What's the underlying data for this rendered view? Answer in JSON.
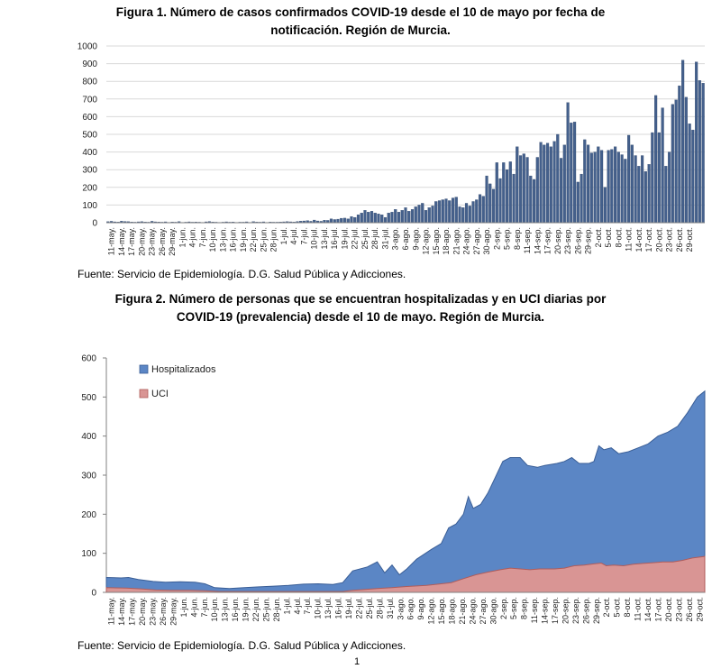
{
  "figure1": {
    "title_line1": "Figura 1. Número de casos confirmados COVID-19 desde el 10 de mayo por fecha de",
    "title_line2": "notificación. Región de Murcia.",
    "source": "Fuente: Servicio de Epidemiología. D.G. Salud Pública y Adicciones."
  },
  "figure2": {
    "title_line1": "Figura 2. Número de personas que se encuentran hospitalizadas y en UCI diarias por",
    "title_line2": "COVID-19 (prevalencia) desde el 10 de mayo. Región de Murcia.",
    "source": "Fuente: Servicio de Epidemiología. D.G. Salud Pública y Adicciones."
  },
  "page_number": "1",
  "colors": {
    "bar_fill": "#44608C",
    "bar_stroke": "#2F4568",
    "hosp_fill": "#5B86C5",
    "hosp_stroke": "#3A5E96",
    "uci_fill": "#D99594",
    "uci_stroke": "#B05C5A",
    "grid": "#D9D9D9",
    "axis": "#808080"
  },
  "chart_data": [
    {
      "type": "bar",
      "title": "Figura 1. Número de casos confirmados COVID-19 desde el 10 de mayo por fecha de notificación. Región de Murcia.",
      "xlabel": "",
      "ylabel": "",
      "ylim": [
        0,
        1000
      ],
      "yticks": [
        0,
        100,
        200,
        300,
        400,
        500,
        600,
        700,
        800,
        900,
        1000
      ],
      "grid": true,
      "start_date": "10-may",
      "categories_tick_labels": [
        "11-may.",
        "14-may.",
        "17-may.",
        "20-may.",
        "23-may.",
        "26-may.",
        "29-may.",
        "1-jun.",
        "4-jun.",
        "7-jun.",
        "10-jun.",
        "13-jun.",
        "16-jun.",
        "19-jun.",
        "22-jun.",
        "25-jun.",
        "28-jun.",
        "1-jul.",
        "4-jul.",
        "7-jul.",
        "10-jul.",
        "13-jul.",
        "16-jul.",
        "19-jul.",
        "22-jul.",
        "25-jul.",
        "28-jul.",
        "31-jul.",
        "3-ago.",
        "6-ago.",
        "9-ago.",
        "12-ago.",
        "15-ago.",
        "18-ago.",
        "21-ago.",
        "24-ago.",
        "27-ago.",
        "30-ago.",
        "2-sep.",
        "5-sep.",
        "8-sep.",
        "11-sep.",
        "14-sep.",
        "17-sep.",
        "20-sep.",
        "23-sep.",
        "26-sep.",
        "29-sep.",
        "2-oct.",
        "5-oct.",
        "8-oct.",
        "11-oct.",
        "14-oct.",
        "17-oct.",
        "20-oct.",
        "23-oct.",
        "26-oct.",
        "29-oct."
      ],
      "values": [
        6,
        8,
        5,
        4,
        9,
        7,
        6,
        4,
        3,
        5,
        6,
        4,
        3,
        8,
        5,
        4,
        3,
        5,
        2,
        4,
        3,
        6,
        2,
        3,
        5,
        3,
        4,
        3,
        2,
        5,
        7,
        4,
        3,
        2,
        3,
        5,
        3,
        4,
        2,
        3,
        3,
        5,
        2,
        6,
        4,
        3,
        5,
        2,
        4,
        3,
        3,
        4,
        5,
        6,
        5,
        4,
        7,
        9,
        10,
        12,
        8,
        15,
        10,
        8,
        14,
        13,
        22,
        18,
        20,
        25,
        26,
        22,
        35,
        30,
        45,
        55,
        70,
        60,
        65,
        55,
        50,
        45,
        30,
        55,
        60,
        75,
        60,
        70,
        85,
        65,
        75,
        90,
        100,
        110,
        70,
        85,
        95,
        120,
        125,
        130,
        135,
        125,
        140,
        145,
        90,
        85,
        110,
        95,
        120,
        130,
        160,
        150,
        265,
        220,
        190,
        340,
        250,
        340,
        300,
        345,
        275,
        430,
        380,
        390,
        370,
        265,
        245,
        370,
        455,
        440,
        450,
        430,
        460,
        500,
        365,
        440,
        680,
        565,
        570,
        230,
        275,
        470,
        440,
        395,
        400,
        430,
        410,
        200,
        410,
        415,
        430,
        400,
        385,
        360,
        495,
        440,
        380,
        320,
        380,
        290,
        330,
        510,
        720,
        510,
        650,
        320,
        400,
        670,
        695,
        775,
        920,
        710,
        560,
        525,
        910,
        805,
        790
      ]
    },
    {
      "type": "area",
      "title": "Figura 2. Número de personas que se encuentran hospitalizadas y en UCI diarias por COVID-19 (prevalencia) desde el 10 de mayo. Región de Murcia.",
      "xlabel": "",
      "ylabel": "",
      "ylim": [
        0,
        600
      ],
      "yticks": [
        0,
        100,
        200,
        300,
        400,
        500,
        600
      ],
      "grid": false,
      "legend_position": "top-left",
      "categories_tick_labels": [
        "11-may.",
        "14-may.",
        "17-may.",
        "20-may.",
        "23-may.",
        "26-may.",
        "29-may.",
        "1-jun.",
        "4-jun.",
        "7-jun.",
        "10-jun.",
        "13-jun.",
        "16-jun.",
        "19-jun.",
        "22-jun.",
        "25-jun.",
        "28-jun.",
        "1-jul.",
        "4-jul.",
        "7-jul.",
        "10-jul.",
        "13-jul.",
        "16-jul.",
        "19-jul.",
        "22-jul.",
        "25-jul.",
        "28-jul.",
        "31-jul.",
        "3-ago.",
        "6-ago.",
        "9-ago.",
        "12-ago.",
        "15-ago.",
        "18-ago.",
        "21-ago.",
        "24-ago.",
        "27-ago.",
        "30-ago.",
        "2-sep.",
        "5-sep.",
        "8-sep.",
        "11-sep.",
        "14-sep.",
        "17-sep.",
        "20-sep.",
        "23-sep.",
        "26-sep.",
        "29-sep.",
        "2-oct.",
        "5-oct.",
        "8-oct.",
        "11-oct.",
        "14-oct.",
        "17-oct.",
        "20-oct.",
        "23-oct.",
        "26-oct.",
        "29-oct."
      ],
      "series": [
        {
          "name": "Hospitalizados",
          "keypoints": [
            [
              0,
              38
            ],
            [
              6,
              37
            ],
            [
              9,
              38
            ],
            [
              13,
              33
            ],
            [
              19,
              28
            ],
            [
              24,
              26
            ],
            [
              30,
              27
            ],
            [
              36,
              26
            ],
            [
              40,
              22
            ],
            [
              44,
              12
            ],
            [
              50,
              10
            ],
            [
              56,
              12
            ],
            [
              62,
              14
            ],
            [
              68,
              16
            ],
            [
              74,
              18
            ],
            [
              80,
              21
            ],
            [
              86,
              22
            ],
            [
              92,
              20
            ],
            [
              96,
              25
            ],
            [
              100,
              55
            ],
            [
              106,
              65
            ],
            [
              110,
              78
            ],
            [
              113,
              50
            ],
            [
              116,
              70
            ],
            [
              119,
              45
            ],
            [
              122,
              60
            ],
            [
              126,
              85
            ],
            [
              132,
              110
            ],
            [
              136,
              125
            ],
            [
              139,
              165
            ],
            [
              142,
              175
            ],
            [
              145,
              200
            ],
            [
              147,
              245
            ],
            [
              149,
              215
            ],
            [
              152,
              225
            ],
            [
              155,
              255
            ],
            [
              158,
              295
            ],
            [
              161,
              335
            ],
            [
              164,
              345
            ],
            [
              168,
              345
            ],
            [
              171,
              325
            ],
            [
              175,
              320
            ],
            [
              178,
              325
            ],
            [
              183,
              330
            ],
            [
              186,
              335
            ],
            [
              189,
              345
            ],
            [
              192,
              330
            ],
            [
              196,
              330
            ],
            [
              198,
              335
            ],
            [
              200,
              375
            ],
            [
              202,
              365
            ],
            [
              205,
              370
            ],
            [
              208,
              355
            ],
            [
              212,
              360
            ],
            [
              216,
              370
            ],
            [
              220,
              380
            ],
            [
              224,
              400
            ],
            [
              228,
              410
            ],
            [
              232,
              425
            ],
            [
              236,
              460
            ],
            [
              240,
              500
            ],
            [
              243,
              515
            ]
          ]
        },
        {
          "name": "UCI",
          "keypoints": [
            [
              0,
              12
            ],
            [
              8,
              11
            ],
            [
              14,
              9
            ],
            [
              20,
              6
            ],
            [
              26,
              5
            ],
            [
              34,
              5
            ],
            [
              40,
              4
            ],
            [
              46,
              2
            ],
            [
              60,
              2
            ],
            [
              80,
              2
            ],
            [
              96,
              2
            ],
            [
              100,
              5
            ],
            [
              104,
              7
            ],
            [
              110,
              10
            ],
            [
              116,
              12
            ],
            [
              122,
              15
            ],
            [
              130,
              18
            ],
            [
              136,
              22
            ],
            [
              140,
              25
            ],
            [
              145,
              35
            ],
            [
              150,
              45
            ],
            [
              155,
              52
            ],
            [
              160,
              58
            ],
            [
              164,
              62
            ],
            [
              168,
              60
            ],
            [
              172,
              58
            ],
            [
              176,
              60
            ],
            [
              182,
              60
            ],
            [
              186,
              62
            ],
            [
              190,
              68
            ],
            [
              194,
              70
            ],
            [
              198,
              73
            ],
            [
              201,
              75
            ],
            [
              203,
              68
            ],
            [
              206,
              70
            ],
            [
              210,
              68
            ],
            [
              214,
              72
            ],
            [
              218,
              74
            ],
            [
              222,
              76
            ],
            [
              226,
              78
            ],
            [
              230,
              78
            ],
            [
              234,
              82
            ],
            [
              238,
              88
            ],
            [
              243,
              92
            ]
          ]
        }
      ]
    }
  ]
}
